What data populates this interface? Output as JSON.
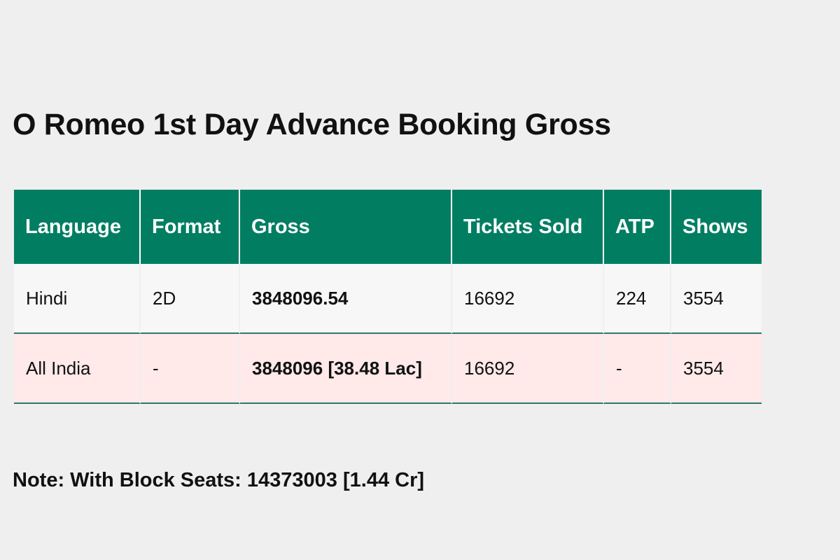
{
  "page": {
    "title": "O Romeo 1st Day Advance Booking Gross",
    "note": "Note: With Block Seats: 14373003 [1.44 Cr]"
  },
  "colors": {
    "header_bg": "#017e62",
    "header_text": "#ffffff",
    "row_default_bg": "#f7f7f7",
    "row_total_bg": "#ffe9e9",
    "row_border": "#2a7a6c",
    "page_bg": "#efefef"
  },
  "table": {
    "columns": [
      "Language",
      "Format",
      "Gross",
      "Tickets Sold",
      "ATP",
      "Shows"
    ],
    "rows": [
      {
        "language": "Hindi",
        "format": "2D",
        "gross": "3848096.54",
        "tickets_sold": "16692",
        "atp": "224",
        "shows": "3554"
      },
      {
        "language": "All India",
        "format": "-",
        "gross": "3848096 [38.48 Lac]",
        "tickets_sold": "16692",
        "atp": "-",
        "shows": "3554"
      }
    ]
  }
}
